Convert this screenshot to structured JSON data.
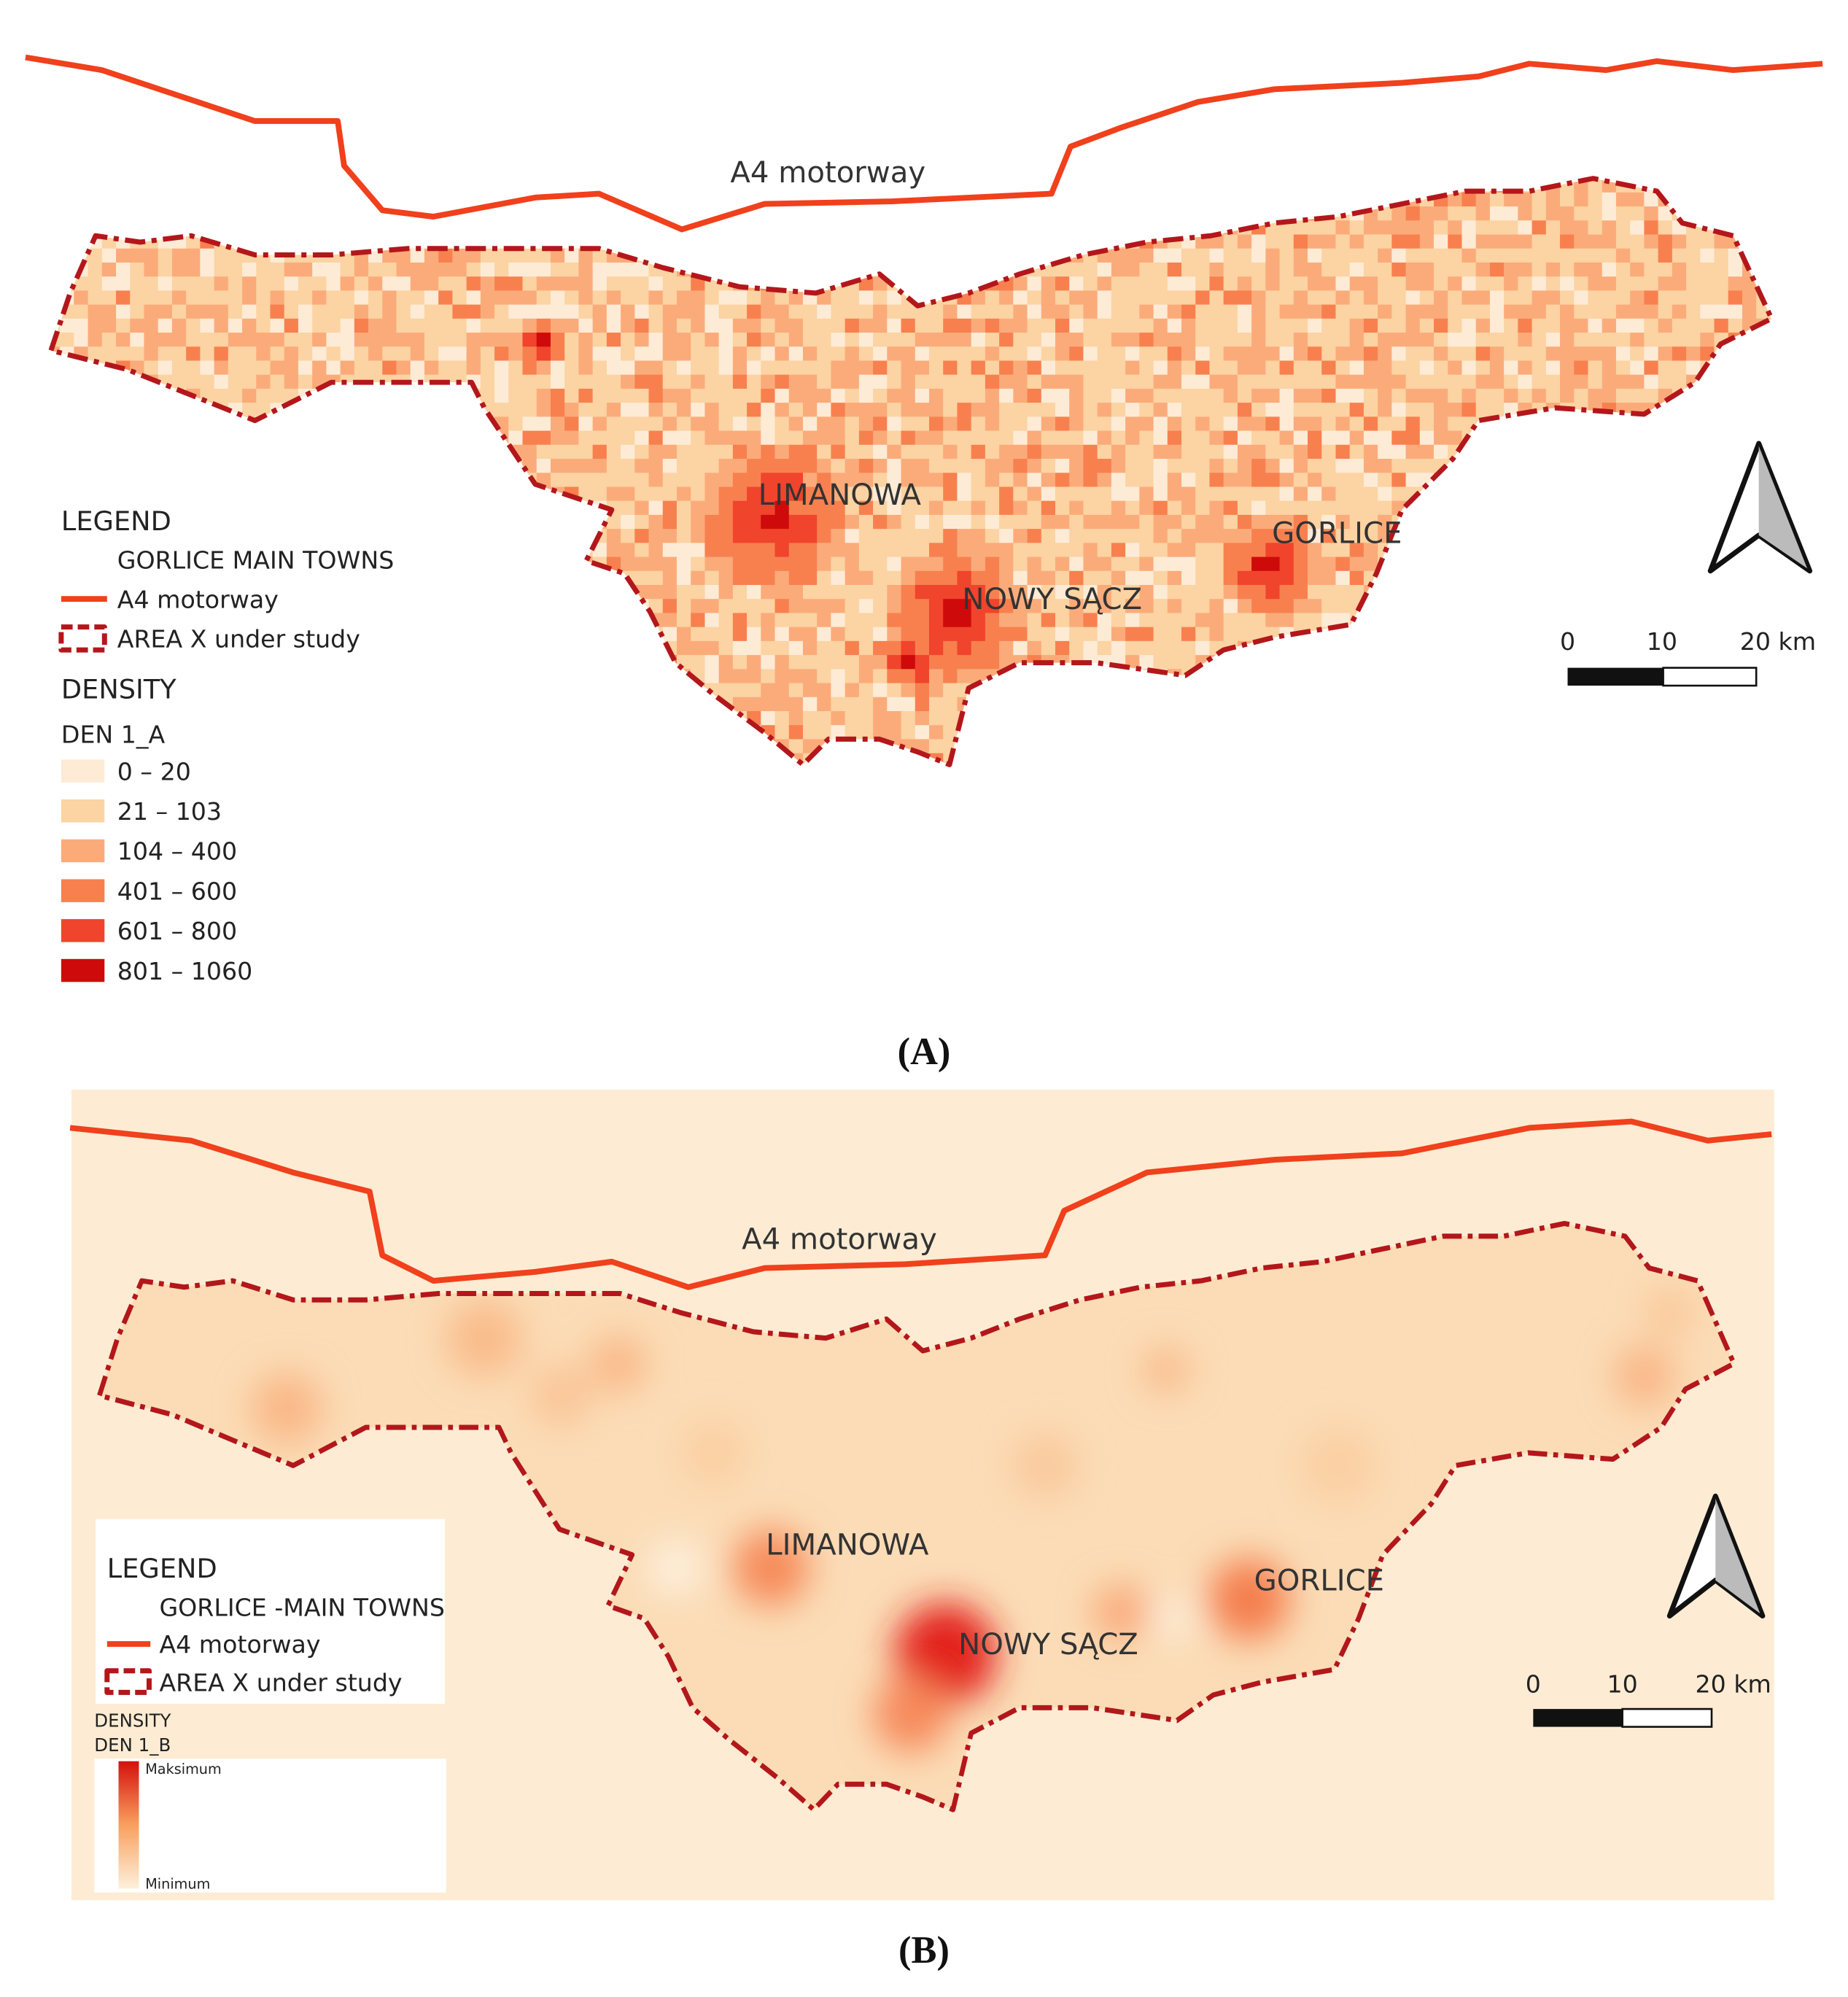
{
  "panel_a": {
    "motorway_label": "A4 motorway",
    "towns": [
      "LIMANOWA",
      "NOWY SĄCZ",
      "GORLICE"
    ],
    "legend": {
      "title": "LEGEND",
      "towns": "GORLICE MAIN TOWNS",
      "motorway": "A4 motorway",
      "area": "AREA X under study",
      "density": "DENSITY",
      "layer": "DEN 1_A",
      "classes": [
        {
          "label": "0 – 20",
          "color": "#fdebd6"
        },
        {
          "label": "21 – 103",
          "color": "#fcd3a2"
        },
        {
          "label": "104 – 400",
          "color": "#fbab7a"
        },
        {
          "label": "401 – 600",
          "color": "#f8804f"
        },
        {
          "label": "601 – 800",
          "color": "#f0442c"
        },
        {
          "label": "801 – 1060",
          "color": "#cf0a0a"
        }
      ]
    },
    "scale_labels": [
      "0",
      "10",
      "20 km"
    ],
    "caption": "(A)"
  },
  "panel_b": {
    "motorway_label": "A4 motorway",
    "towns": [
      "LIMANOWA",
      "NOWY SĄCZ",
      "GORLICE"
    ],
    "legend": {
      "title": "LEGEND",
      "towns": "GORLICE  -MAIN TOWNS",
      "motorway": "A4 motorway",
      "area": "AREA X under study",
      "density": "DENSITY",
      "layer": "DEN 1_B",
      "max": "Maksimum",
      "min": "Minimum"
    },
    "scale_labels": [
      "0",
      "10",
      "20 km"
    ],
    "caption": "(B)"
  }
}
